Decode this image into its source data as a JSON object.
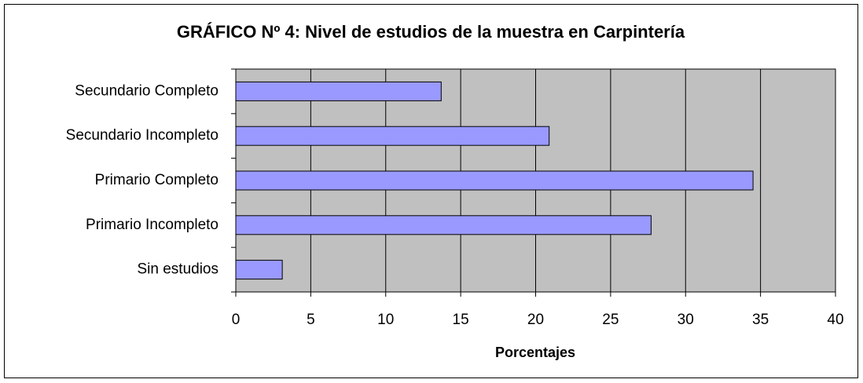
{
  "chart_data": {
    "type": "bar",
    "orientation": "horizontal",
    "title": "GRÁFICO Nº 4: Nivel de estudios de la muestra en Carpintería",
    "x_label": "Porcentajes",
    "categories": [
      "Secundario Completo",
      "Secundario Incompleto",
      "Primario Completo",
      "Primario Incompleto",
      "Sin estudios"
    ],
    "values": [
      13.7,
      20.9,
      34.5,
      27.7,
      3.1
    ],
    "color": "#9999ff",
    "xlim": [
      0,
      40
    ],
    "xticks": [
      0,
      5,
      10,
      15,
      20,
      25,
      30,
      35,
      40
    ],
    "grid": true
  }
}
